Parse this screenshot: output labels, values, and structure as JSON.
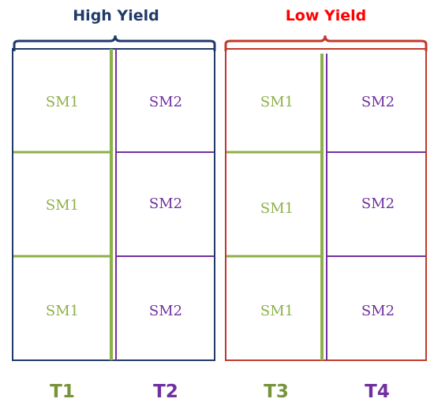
{
  "colors": {
    "high_yield": "#1f3a68",
    "low_yield": "#c0392b",
    "low_yield_title": "#ff0000",
    "sm1": "#8db04a",
    "sm2": "#7030a0",
    "t_green": "#77933c",
    "t_purple": "#7030a0"
  },
  "groups": [
    {
      "title": "High Yield"
    },
    {
      "title": "Low Yield"
    }
  ],
  "cells": {
    "sm1": "SM1",
    "sm2": "SM2"
  },
  "columns": [
    "T1",
    "T2",
    "T3",
    "T4"
  ]
}
